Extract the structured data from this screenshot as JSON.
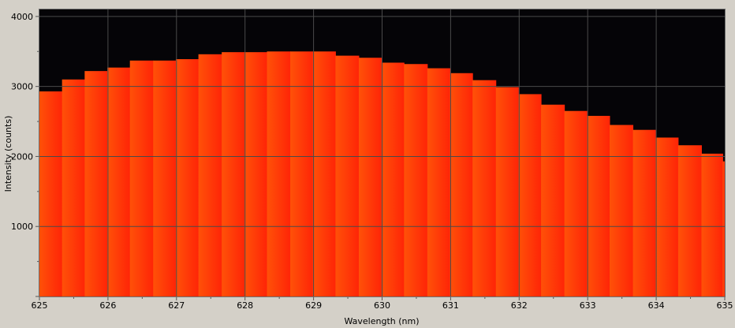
{
  "chart_data": {
    "type": "area",
    "title": "",
    "xlabel": "Wavelength (nm)",
    "ylabel": "Intensity (counts)",
    "xlim": [
      625,
      635
    ],
    "ylim": [
      0,
      4100
    ],
    "x_ticks": [
      625,
      626,
      627,
      628,
      629,
      630,
      631,
      632,
      633,
      634,
      635
    ],
    "x_tick_labels": [
      "625",
      "626",
      "627",
      "628",
      "629",
      "630",
      "631",
      "632",
      "633",
      "634",
      "635"
    ],
    "y_ticks": [
      1000,
      2000,
      3000,
      4000
    ],
    "y_tick_labels": [
      "1000",
      "2000",
      "3000",
      "4000"
    ],
    "grid": true,
    "step": true,
    "series": [
      {
        "x": [
          625.0,
          625.33,
          625.66,
          625.99,
          626.32,
          626.66,
          626.99,
          627.32,
          627.66,
          627.99,
          628.32,
          628.66,
          628.99,
          629.32,
          629.66,
          629.99,
          630.32,
          630.66,
          630.99,
          631.32,
          631.66,
          631.99,
          632.32,
          632.66,
          632.99,
          633.32,
          633.66,
          633.99,
          634.32,
          634.66,
          634.97
        ],
        "values": [
          2930,
          3100,
          3220,
          3270,
          3370,
          3370,
          3390,
          3460,
          3490,
          3490,
          3500,
          3500,
          3500,
          3440,
          3410,
          3340,
          3320,
          3260,
          3190,
          3090,
          2990,
          2890,
          2740,
          2650,
          2580,
          2450,
          2380,
          2270,
          2160,
          2040,
          1930
        ]
      }
    ],
    "colors": {
      "plot_background": "#050407",
      "fill_start": "#ff5108",
      "fill_end": "#ff2407",
      "grid": "#4a4a4a",
      "frame": "#6e6e6e",
      "page_background": "#d4d0c8"
    }
  }
}
